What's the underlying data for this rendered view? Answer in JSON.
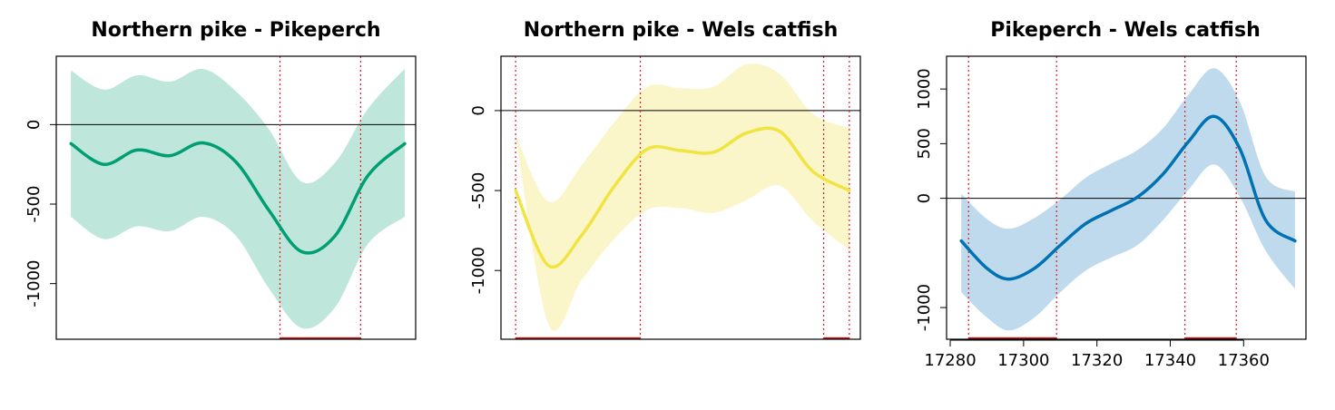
{
  "chart_data": [
    {
      "type": "line",
      "title": "Northern pike - Pikeperch",
      "xlabel": "",
      "ylabel": "",
      "x_range": [
        17283,
        17374
      ],
      "xlim": [
        17279,
        17377
      ],
      "ylim": [
        -1350,
        430
      ],
      "ytick_labels": [
        "0",
        "-500",
        "-1000"
      ],
      "yticks": [
        0,
        -500,
        -1000
      ],
      "xtick_labels": [],
      "xticks": [],
      "color": "#009E73",
      "band_color": "#BEE6DA",
      "reference_line": 0,
      "series": [
        {
          "x": [
            17283,
            17292,
            17301,
            17310,
            17319,
            17328,
            17337,
            17346,
            17355,
            17364,
            17374
          ],
          "y": [
            -120,
            -250,
            -160,
            -195,
            -115,
            -235,
            -540,
            -800,
            -700,
            -320,
            -120
          ],
          "lower": [
            -580,
            -720,
            -640,
            -670,
            -580,
            -700,
            -1030,
            -1280,
            -1150,
            -750,
            -580
          ],
          "upper": [
            340,
            220,
            310,
            270,
            350,
            210,
            -30,
            -360,
            -240,
            100,
            350
          ]
        }
      ],
      "significant_intervals": [
        [
          17340,
          17362
        ]
      ]
    },
    {
      "type": "line",
      "title": "Northern pike - Wels catfish",
      "xlabel": "",
      "ylabel": "",
      "x_range": [
        17283,
        17374
      ],
      "xlim": [
        17279,
        17377
      ],
      "ylim": [
        -1430,
        340
      ],
      "ytick_labels": [
        "0",
        "-500",
        "-1000"
      ],
      "yticks": [
        0,
        -500,
        -1000
      ],
      "xtick_labels": [],
      "xticks": [],
      "color": "#F0E442",
      "band_color": "#FBF6CA",
      "reference_line": 0,
      "series": [
        {
          "x": [
            17283,
            17292,
            17301,
            17310,
            17319,
            17328,
            17337,
            17346,
            17355,
            17364,
            17374
          ],
          "y": [
            -500,
            -970,
            -780,
            -470,
            -240,
            -250,
            -260,
            -140,
            -130,
            -380,
            -500
          ],
          "lower": [
            -150,
            -1340,
            -1060,
            -800,
            -620,
            -610,
            -640,
            -560,
            -470,
            -690,
            -870
          ],
          "upper": [
            -150,
            -570,
            -340,
            -70,
            150,
            140,
            150,
            290,
            230,
            -20,
            -110
          ]
        }
      ],
      "significant_intervals": [
        [
          17283,
          17317
        ],
        [
          17367,
          17374
        ]
      ]
    },
    {
      "type": "line",
      "title": "Pikeperch - Wels catfish",
      "xlabel": "",
      "ylabel": "",
      "x_range": [
        17283,
        17374
      ],
      "xlim": [
        17279,
        17377
      ],
      "ylim": [
        -1290,
        1300
      ],
      "ytick_labels": [
        "1000",
        "500",
        "0",
        "-1000"
      ],
      "yticks": [
        1000,
        500,
        0,
        -1000
      ],
      "xtick_labels": [
        "17280",
        "17300",
        "17320",
        "17340",
        "17360"
      ],
      "xticks": [
        17280,
        17300,
        17320,
        17340,
        17360
      ],
      "color": "#0072B2",
      "band_color": "#BFDAEC",
      "reference_line": 0,
      "series": [
        {
          "x": [
            17283,
            17290,
            17296,
            17303,
            17310,
            17317,
            17324,
            17331,
            17338,
            17345,
            17352,
            17359,
            17366,
            17374
          ],
          "y": [
            -390,
            -640,
            -740,
            -640,
            -430,
            -230,
            -110,
            10,
            220,
            520,
            750,
            450,
            -200,
            -390
          ],
          "lower": [
            -860,
            -1090,
            -1210,
            -1090,
            -860,
            -660,
            -540,
            -430,
            -200,
            80,
            310,
            10,
            -480,
            -830
          ],
          "upper": [
            40,
            -190,
            -280,
            -180,
            -10,
            190,
            320,
            440,
            640,
            950,
            1190,
            880,
            200,
            60
          ]
        }
      ],
      "significant_intervals": [
        [
          17285,
          17309
        ],
        [
          17344,
          17358
        ]
      ]
    }
  ]
}
